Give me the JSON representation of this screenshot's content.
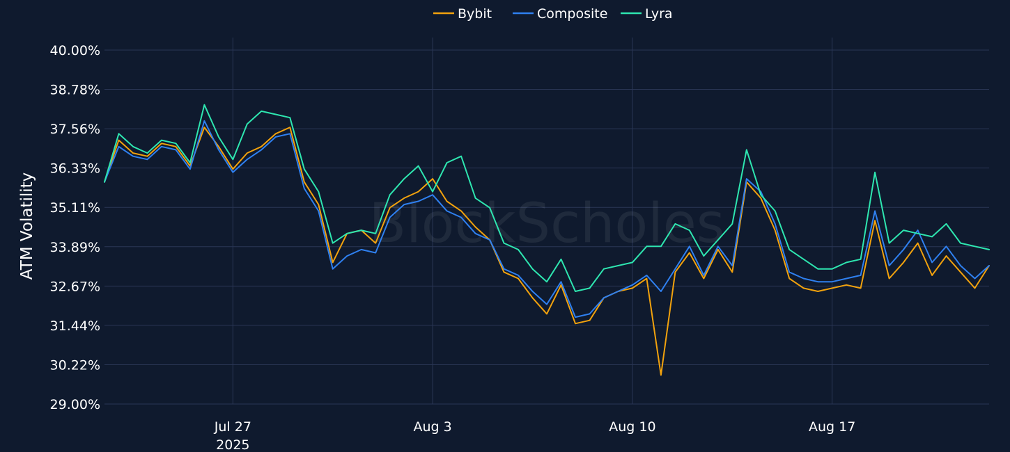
{
  "watermark": "BlockScholes",
  "chart_data": {
    "type": "line",
    "title": "",
    "xlabel": "",
    "ylabel": "ATM Volatility",
    "ylim": [
      29.0,
      40.0
    ],
    "y_unit": "%",
    "y_ticks": [
      "29.00%",
      "30.22%",
      "31.44%",
      "32.67%",
      "33.89%",
      "35.11%",
      "36.33%",
      "37.56%",
      "38.78%",
      "40.00%"
    ],
    "y_tick_values": [
      29.0,
      30.222,
      31.444,
      32.667,
      33.889,
      35.111,
      36.333,
      37.556,
      38.778,
      40.0
    ],
    "x_ticks": [
      {
        "date": "2025-07-27",
        "label": "Jul 27",
        "sublabel": "2025"
      },
      {
        "date": "2025-08-03",
        "label": "Aug 3",
        "sublabel": ""
      },
      {
        "date": "2025-08-10",
        "label": "Aug 10",
        "sublabel": ""
      },
      {
        "date": "2025-08-17",
        "label": "Aug 17",
        "sublabel": ""
      }
    ],
    "xlim": [
      "2025-07-22T12:00",
      "2025-08-22T12:00"
    ],
    "legend_position": "top-center",
    "grid": true,
    "x": [
      "2025-07-22T12:00",
      "2025-07-23T00:00",
      "2025-07-23T12:00",
      "2025-07-24T00:00",
      "2025-07-24T12:00",
      "2025-07-25T00:00",
      "2025-07-25T12:00",
      "2025-07-26T00:00",
      "2025-07-26T12:00",
      "2025-07-27T00:00",
      "2025-07-27T12:00",
      "2025-07-28T00:00",
      "2025-07-28T12:00",
      "2025-07-29T00:00",
      "2025-07-29T12:00",
      "2025-07-30T00:00",
      "2025-07-30T12:00",
      "2025-07-31T00:00",
      "2025-07-31T12:00",
      "2025-08-01T00:00",
      "2025-08-01T12:00",
      "2025-08-02T00:00",
      "2025-08-02T12:00",
      "2025-08-03T00:00",
      "2025-08-03T12:00",
      "2025-08-04T00:00",
      "2025-08-04T12:00",
      "2025-08-05T00:00",
      "2025-08-05T12:00",
      "2025-08-06T00:00",
      "2025-08-06T12:00",
      "2025-08-07T00:00",
      "2025-08-07T12:00",
      "2025-08-08T00:00",
      "2025-08-08T12:00",
      "2025-08-09T00:00",
      "2025-08-09T12:00",
      "2025-08-10T00:00",
      "2025-08-10T12:00",
      "2025-08-11T00:00",
      "2025-08-11T12:00",
      "2025-08-12T00:00",
      "2025-08-12T12:00",
      "2025-08-13T00:00",
      "2025-08-13T12:00",
      "2025-08-14T00:00",
      "2025-08-14T12:00",
      "2025-08-15T00:00",
      "2025-08-15T12:00",
      "2025-08-16T00:00",
      "2025-08-16T12:00",
      "2025-08-17T00:00",
      "2025-08-17T12:00",
      "2025-08-18T00:00",
      "2025-08-18T12:00",
      "2025-08-19T00:00",
      "2025-08-19T12:00",
      "2025-08-20T00:00",
      "2025-08-20T12:00",
      "2025-08-21T00:00",
      "2025-08-21T12:00",
      "2025-08-22T00:00",
      "2025-08-22T12:00"
    ],
    "series": [
      {
        "name": "Bybit",
        "color": "#f2a20d",
        "values": [
          35.9,
          37.2,
          36.8,
          36.7,
          37.1,
          37.0,
          36.4,
          37.6,
          37.0,
          36.3,
          36.8,
          37.0,
          37.4,
          37.6,
          35.9,
          35.2,
          33.4,
          34.3,
          34.4,
          34.0,
          35.1,
          35.4,
          35.6,
          36.0,
          35.3,
          35.0,
          34.5,
          34.1,
          33.1,
          32.9,
          32.3,
          31.8,
          32.7,
          31.5,
          31.6,
          32.3,
          32.5,
          32.6,
          32.9,
          29.9,
          33.1,
          33.7,
          32.9,
          33.8,
          33.1,
          35.9,
          35.4,
          34.4,
          32.9,
          32.6,
          32.5,
          32.6,
          32.7,
          32.6,
          34.7,
          32.9,
          33.4,
          34.0,
          33.0,
          33.6,
          33.1,
          32.6,
          33.3
        ]
      },
      {
        "name": "Composite",
        "color": "#2f80f0",
        "values": [
          35.9,
          37.0,
          36.7,
          36.6,
          37.0,
          36.9,
          36.3,
          37.8,
          36.9,
          36.2,
          36.6,
          36.9,
          37.3,
          37.4,
          35.7,
          35.0,
          33.2,
          33.6,
          33.8,
          33.7,
          34.8,
          35.2,
          35.3,
          35.5,
          35.0,
          34.8,
          34.3,
          34.1,
          33.2,
          33.0,
          32.5,
          32.1,
          32.8,
          31.7,
          31.8,
          32.3,
          32.5,
          32.7,
          33.0,
          32.5,
          33.2,
          33.9,
          33.0,
          33.9,
          33.3,
          36.0,
          35.6,
          34.6,
          33.1,
          32.9,
          32.8,
          32.8,
          32.9,
          33.0,
          35.0,
          33.3,
          33.8,
          34.4,
          33.4,
          33.9,
          33.3,
          32.9,
          33.3
        ]
      },
      {
        "name": "Lyra",
        "color": "#2ee6b0",
        "values": [
          35.9,
          37.4,
          37.0,
          36.8,
          37.2,
          37.1,
          36.5,
          38.3,
          37.3,
          36.6,
          37.7,
          38.1,
          38.0,
          37.9,
          36.3,
          35.6,
          34.0,
          34.3,
          34.4,
          34.3,
          35.5,
          36.0,
          36.4,
          35.6,
          36.5,
          36.7,
          35.4,
          35.1,
          34.0,
          33.8,
          33.2,
          32.8,
          33.5,
          32.5,
          32.6,
          33.2,
          33.3,
          33.4,
          33.9,
          33.9,
          34.6,
          34.4,
          33.6,
          34.1,
          34.6,
          36.9,
          35.5,
          35.0,
          33.8,
          33.5,
          33.2,
          33.2,
          33.4,
          33.5,
          36.2,
          34.0,
          34.4,
          34.3,
          34.2,
          34.6,
          34.0,
          33.9,
          33.8
        ]
      }
    ]
  }
}
